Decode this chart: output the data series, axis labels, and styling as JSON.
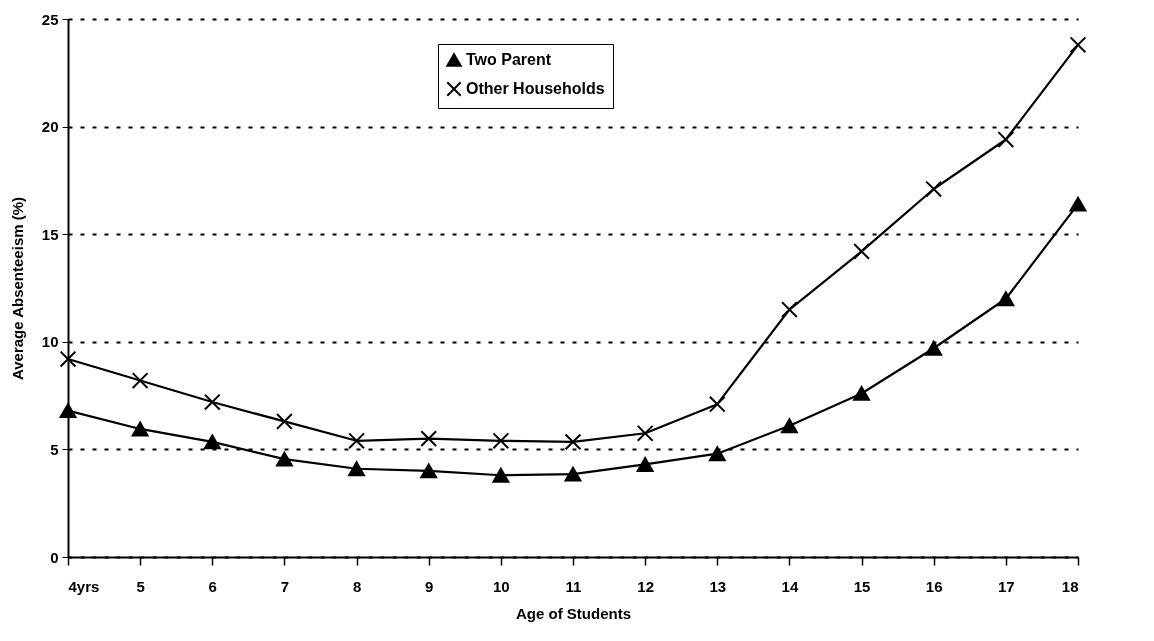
{
  "chart_data": {
    "type": "line",
    "xlabel": "Age of Students",
    "ylabel": "Average Absenteeism (%)",
    "categories": [
      "4yrs",
      "5",
      "6",
      "7",
      "8",
      "9",
      "10",
      "11",
      "12",
      "13",
      "14",
      "15",
      "16",
      "17",
      "18"
    ],
    "series": [
      {
        "name": "Two Parent",
        "color": "#000000",
        "marker": "triangle",
        "values": [
          6.8,
          5.95,
          5.35,
          4.55,
          4.1,
          4.0,
          3.8,
          3.85,
          4.3,
          4.8,
          6.1,
          7.6,
          9.7,
          12.0,
          16.4
        ]
      },
      {
        "name": "Other Households",
        "color": "#000000",
        "marker": "cross",
        "values": [
          9.2,
          8.2,
          7.2,
          6.3,
          5.4,
          5.5,
          5.4,
          5.35,
          5.75,
          7.1,
          11.5,
          14.2,
          17.1,
          19.4,
          23.8
        ]
      }
    ],
    "ylim": [
      0,
      25
    ],
    "yticks": [
      0,
      5,
      10,
      15,
      20,
      25
    ],
    "grid": "y",
    "legend": "top",
    "line_style": "solid"
  }
}
